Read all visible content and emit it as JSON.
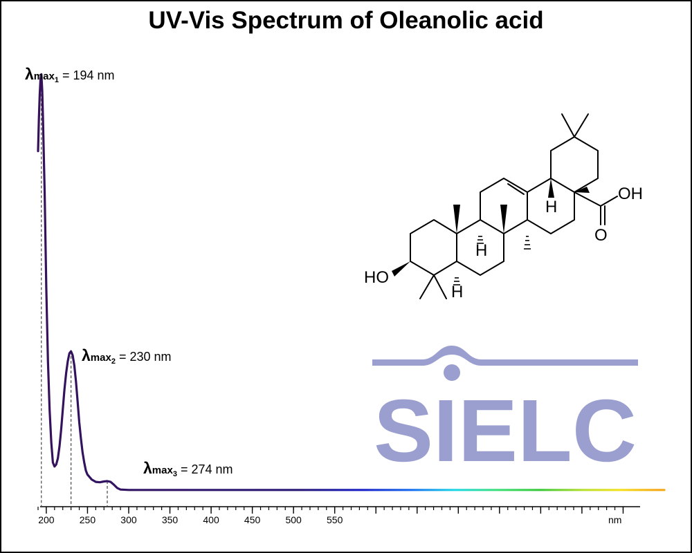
{
  "title": "UV-Vis Spectrum of Oleanolic acid",
  "peaks": [
    {
      "lambda": "λ",
      "sub": "max",
      "index": "1",
      "text": "= 194 nm"
    },
    {
      "lambda": "λ",
      "sub": "max",
      "index": "2",
      "text": "= 230 nm"
    },
    {
      "lambda": "λ",
      "sub": "max",
      "index": "3",
      "text": "= 274 nm"
    }
  ],
  "molecule": {
    "labels": {
      "ho": "HO",
      "oh": "OH",
      "o": "O",
      "h1": "H",
      "h2": "H",
      "h3": "H"
    }
  },
  "logo": {
    "text": "SIELC",
    "color": "#9b9fd0"
  },
  "chart_data": {
    "type": "line",
    "title": "UV-Vis Spectrum of Oleanolic acid",
    "xlabel": "nm",
    "ylabel": "",
    "xlim": [
      190,
      950
    ],
    "ylim": [
      0,
      1
    ],
    "x_ticks": [
      200,
      250,
      300,
      350,
      400,
      450,
      500,
      550,
      600,
      650,
      700,
      750,
      800,
      850,
      900
    ],
    "x_tick_labels": [
      "200",
      "250",
      "300",
      "350",
      "400",
      "450",
      "500",
      "550",
      "",
      "",
      "",
      "",
      "",
      "",
      "nm"
    ],
    "minor_tick_step": 10,
    "grid": false,
    "line_color_gradient": "wavelength spectrum (dark purple to orange)",
    "peaks_nm": [
      194,
      230,
      274
    ],
    "series": [
      {
        "x": [
          190,
          191,
          192,
          193,
          194,
          195,
          196,
          198,
          200,
          202,
          204,
          206,
          208,
          210,
          212,
          214,
          216,
          218,
          220,
          222,
          224,
          226,
          228,
          230,
          232,
          234,
          236,
          238,
          240,
          242,
          244,
          246,
          248,
          250,
          255,
          260,
          265,
          270,
          274,
          278,
          282,
          286,
          290,
          300,
          350,
          400,
          500,
          600,
          700,
          800,
          900,
          950
        ],
        "y": [
          0.84,
          0.92,
          0.98,
          1.02,
          1.03,
          0.99,
          0.92,
          0.74,
          0.5,
          0.32,
          0.2,
          0.12,
          0.07,
          0.06,
          0.065,
          0.08,
          0.11,
          0.15,
          0.2,
          0.25,
          0.29,
          0.32,
          0.34,
          0.345,
          0.335,
          0.31,
          0.27,
          0.22,
          0.17,
          0.13,
          0.095,
          0.07,
          0.05,
          0.04,
          0.028,
          0.022,
          0.021,
          0.023,
          0.024,
          0.022,
          0.015,
          0.007,
          0.003,
          0.002,
          0.002,
          0.002,
          0.002,
          0.002,
          0.002,
          0.002,
          0.002,
          0.002
        ]
      }
    ]
  }
}
